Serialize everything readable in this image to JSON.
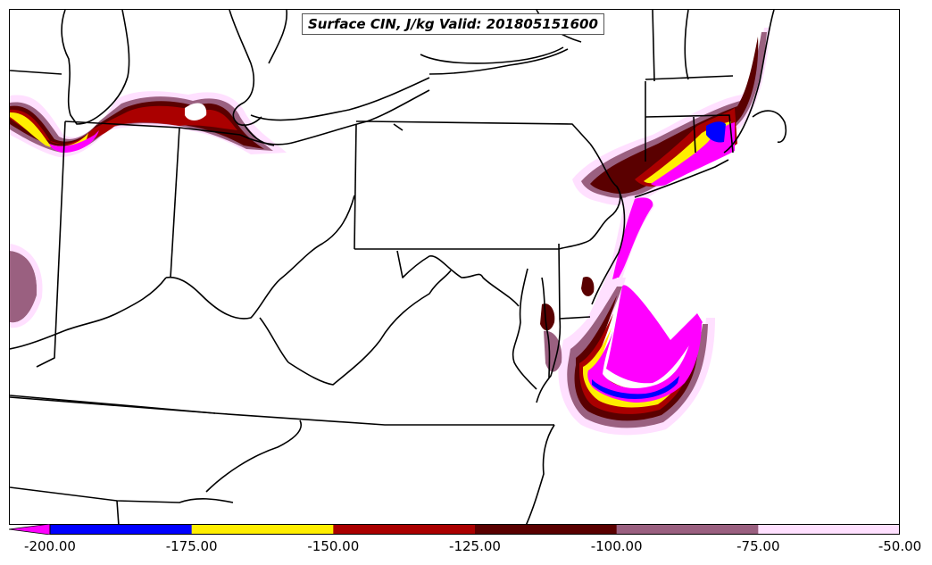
{
  "map": {
    "title": "Surface CIN, J/kg Valid: 201805151600",
    "variable": "Surface CIN",
    "units": "J/kg",
    "valid_time": "201805151600",
    "region": "Mid-Atlantic / Northeast / Ohio Valley, US"
  },
  "colorbar": {
    "orientation": "horizontal",
    "extend": "min",
    "levels": [
      -200,
      -175,
      -150,
      -125,
      -100,
      -75,
      -50
    ],
    "tick_labels": [
      "-200.00",
      "-175.00",
      "-150.00",
      "-125.00",
      "-100.00",
      "-75.00",
      "-50.00"
    ],
    "colors": [
      "#0000ff",
      "#ffee00",
      "#aa0000",
      "#5a0000",
      "#9a6080",
      "#ffe0ff"
    ],
    "under_color": "#ff00ff"
  },
  "colors": {
    "boundary": "#000000",
    "background": "#ffffff"
  }
}
